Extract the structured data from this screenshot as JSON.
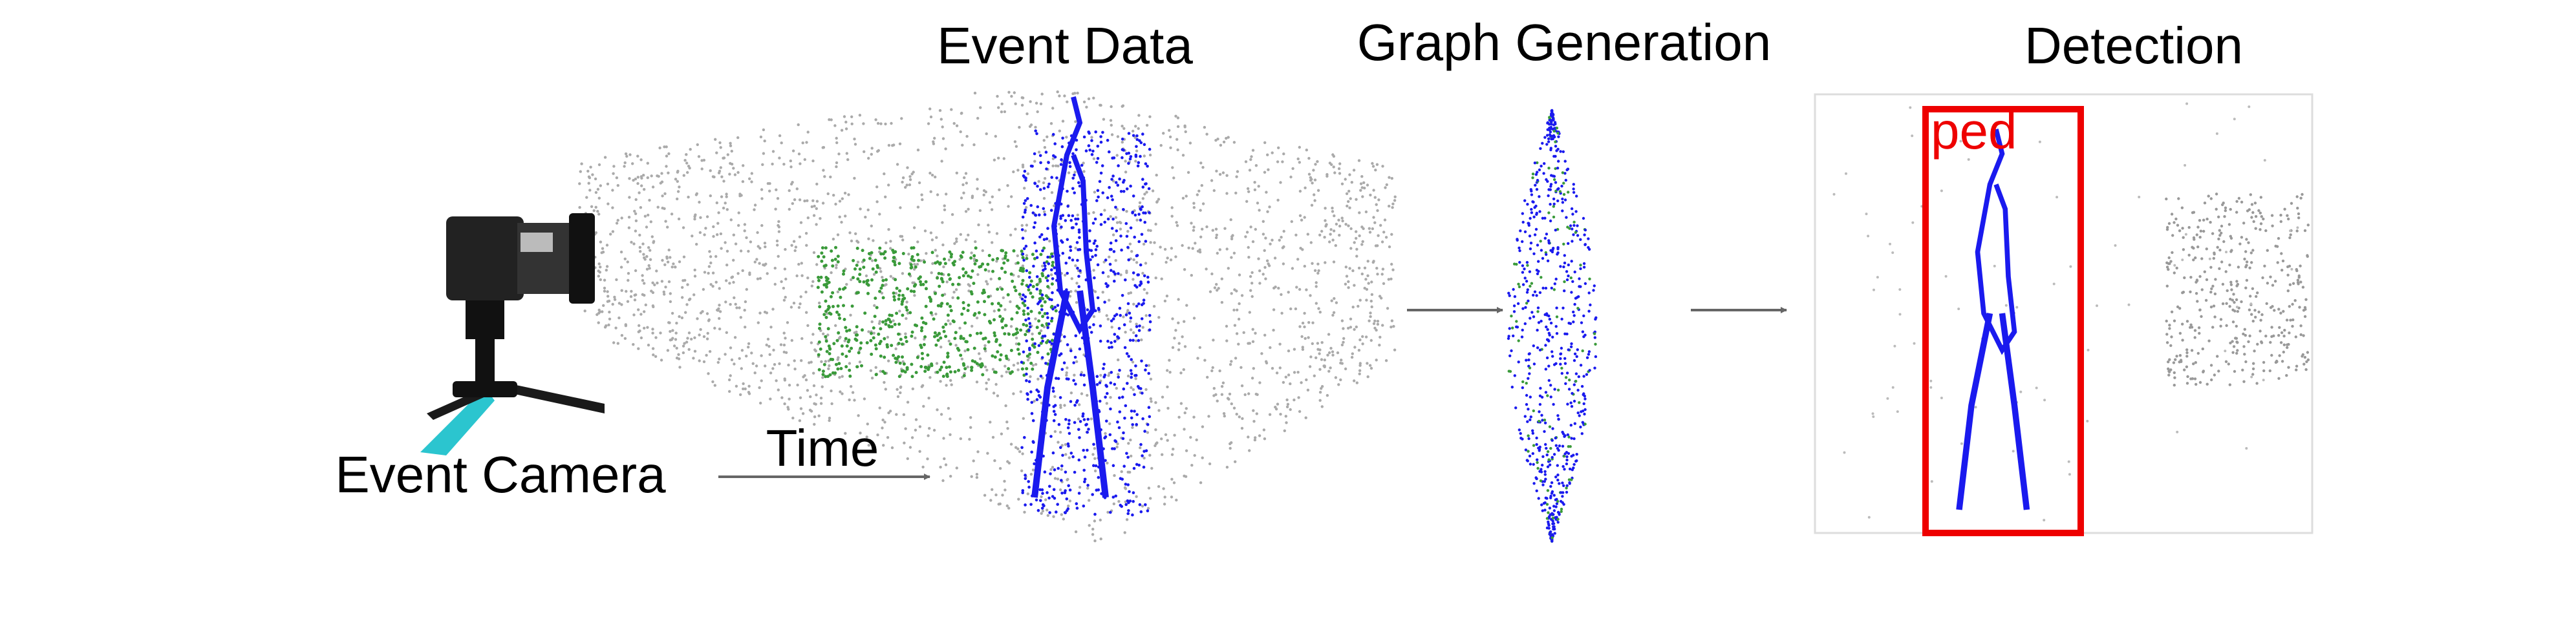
{
  "stages": [
    {
      "label": "Event Data"
    },
    {
      "label": "Graph Generation"
    },
    {
      "label": "Detection"
    }
  ],
  "camera": {
    "label": "Event Camera"
  },
  "time_axis": {
    "label": "Time"
  },
  "detection": {
    "class_label": "ped"
  }
}
